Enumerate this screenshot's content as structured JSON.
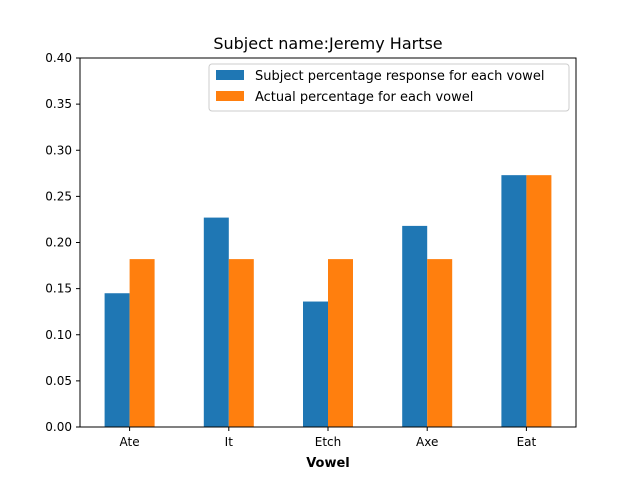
{
  "chart_data": {
    "type": "bar",
    "title": "Subject name:Jeremy Hartse",
    "xlabel": "Vowel",
    "ylabel": "",
    "categories": [
      "Ate",
      "It",
      "Etch",
      "Axe",
      "Eat"
    ],
    "ylim": [
      0,
      0.4
    ],
    "yticks": [
      "0.00",
      "0.05",
      "0.10",
      "0.15",
      "0.20",
      "0.25",
      "0.30",
      "0.35",
      "0.40"
    ],
    "series": [
      {
        "name": "Subject percentage response for each vowel",
        "color": "#1f77b4",
        "values": [
          0.145,
          0.227,
          0.136,
          0.218,
          0.273
        ]
      },
      {
        "name": "Actual percentage for each vowel",
        "color": "#ff7f0e",
        "values": [
          0.182,
          0.182,
          0.182,
          0.182,
          0.273
        ]
      }
    ],
    "grid": false,
    "legend_position": "top-right"
  }
}
